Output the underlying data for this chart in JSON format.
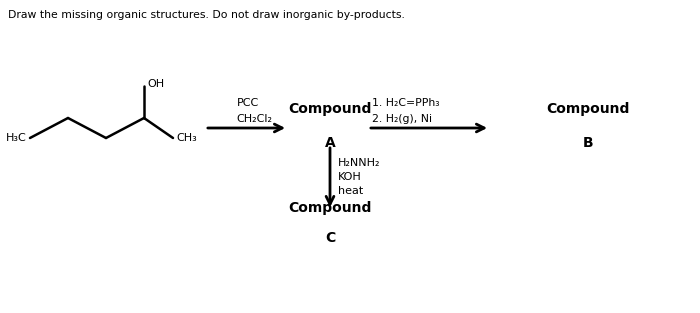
{
  "title": "Draw the missing organic structures. Do not draw inorganic by-products.",
  "background": "#ffffff",
  "reagent1_line1": "PCC",
  "reagent1_line2": "CH₂Cl₂",
  "reagent2_line1": "1. H₂C=PPh₃",
  "reagent2_line2": "2. H₂(g), Ni",
  "reagent3_line1": "H₂NNH₂",
  "reagent3_line2": "KOH",
  "reagent3_line3": "heat",
  "compound_a": "Compound",
  "compound_a2": "A",
  "compound_b": "Compound",
  "compound_b2": "B",
  "compound_c": "Compound",
  "compound_c2": "C",
  "h3c": "H₃C",
  "ch3": "CH₃",
  "oh": "OH"
}
